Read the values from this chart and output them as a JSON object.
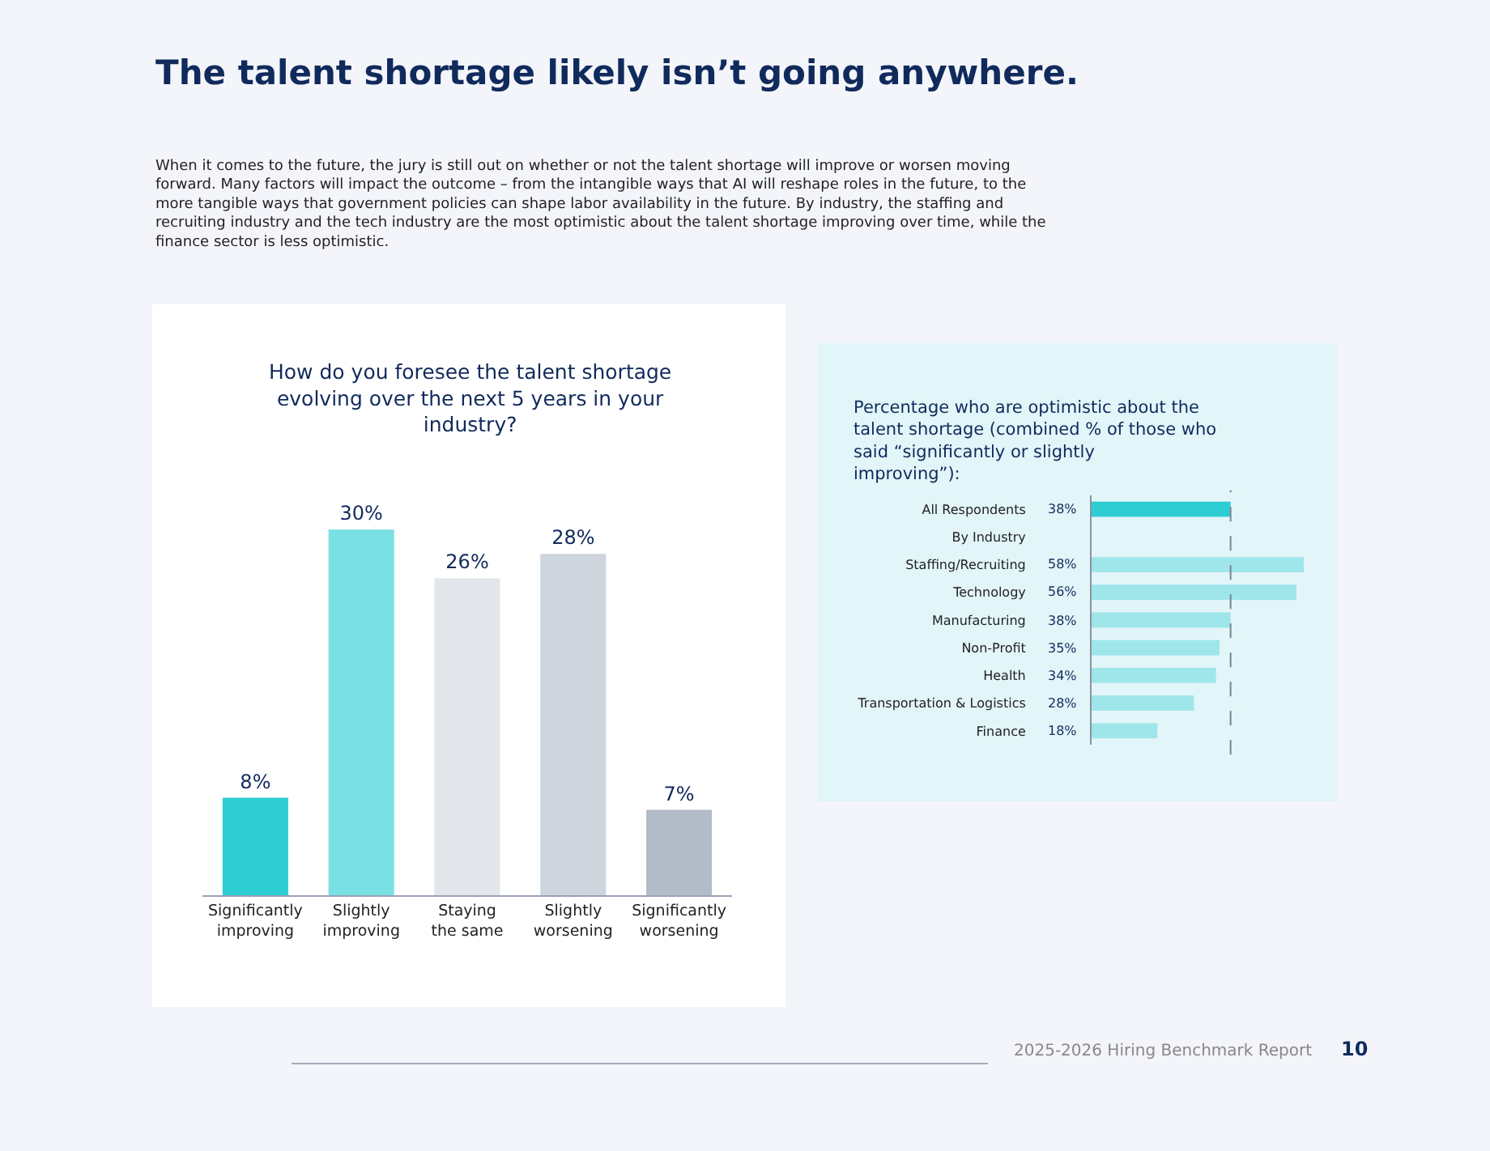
{
  "chart_data": [
    {
      "type": "other",
      "title": "The talent shortage likely isn’t going anywhere.",
      "subtitle": "When it comes to the future, the jury is still out on whether or not the talent shortage will improve or worsen moving forward. Many factors will impact the outcome – from the intangible ways that AI will reshape roles in the future, to the more tangible ways that government policies can shape labor availability in the future. By industry, the staffing and recruiting industry and the tech industry are the most optimistic about the talent shortage improving over time, while the finance sector is less optimistic.",
      "annotations": [
        "2025-2026 Hiring Benchmark Report",
        "10"
      ]
    },
    {
      "type": "bar",
      "title": "How do you foresee the talent shortage evolving over the next 5 years in your industry?",
      "categories": [
        "Significantly improving",
        "Slightly improving",
        "Staying the same",
        "Slightly worsening",
        "Significantly worsening"
      ],
      "values": [
        8,
        30,
        26,
        28,
        7
      ],
      "colors": [
        "#2ecdd3",
        "#79e0e3",
        "#e3e6ea",
        "#cfd5dd",
        "#b2bcc8"
      ],
      "value_labels": [
        "8%",
        "30%",
        "26%",
        "28%",
        "7%"
      ]
    },
    {
      "type": "bar",
      "orientation": "horizontal",
      "title": "Percentage who are optimistic about the talent shortage (combined % of those who said “significantly or slightly improving”):",
      "categories": [
        "All Respondents",
        "By Industry",
        "Staffing/Recruiting",
        "Technology",
        "Manufacturing",
        "Non-Profit",
        "Health",
        "Transportation & Logistics",
        "Finance"
      ],
      "values": [
        38,
        null,
        58,
        56,
        38,
        35,
        34,
        28,
        18
      ],
      "colors": [
        "#2ecdd3",
        null,
        "#9fe6ea",
        "#9fe6ea",
        "#9fe6ea",
        "#9fe6ea",
        "#9fe6ea",
        "#9fe6ea",
        "#9fe6ea"
      ],
      "value_labels": [
        "38%",
        null,
        "58%",
        "56%",
        "38%",
        "35%",
        "34%",
        "28%",
        "18%"
      ],
      "ref_lines": [
        {
          "axis": "x",
          "value": 38,
          "line_style": "dashed",
          "color": "#7a8590"
        }
      ]
    }
  ]
}
